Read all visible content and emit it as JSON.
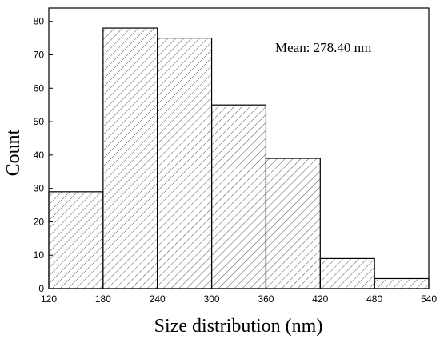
{
  "chart_data": {
    "type": "bar",
    "xlabel": "Size distribution (nm)",
    "ylabel": "Count",
    "annotation": "Mean: 278.40 nm",
    "bins": [
      {
        "start": 120,
        "end": 180,
        "count": 29
      },
      {
        "start": 180,
        "end": 240,
        "count": 78
      },
      {
        "start": 240,
        "end": 300,
        "count": 75
      },
      {
        "start": 300,
        "end": 360,
        "count": 55
      },
      {
        "start": 360,
        "end": 420,
        "count": 39
      },
      {
        "start": 420,
        "end": 480,
        "count": 9
      },
      {
        "start": 480,
        "end": 540,
        "count": 3
      }
    ],
    "xlim": [
      120,
      540
    ],
    "ylim": [
      0,
      84
    ],
    "xticks": [
      120,
      180,
      240,
      300,
      360,
      420,
      480,
      540
    ],
    "yticks": [
      0,
      10,
      20,
      30,
      40,
      50,
      60,
      70,
      80
    ],
    "bar_fill": "hatched",
    "grid": false,
    "colors": {
      "bar_edge": "#000000",
      "hatch": "#555555",
      "background": "#ffffff"
    }
  }
}
